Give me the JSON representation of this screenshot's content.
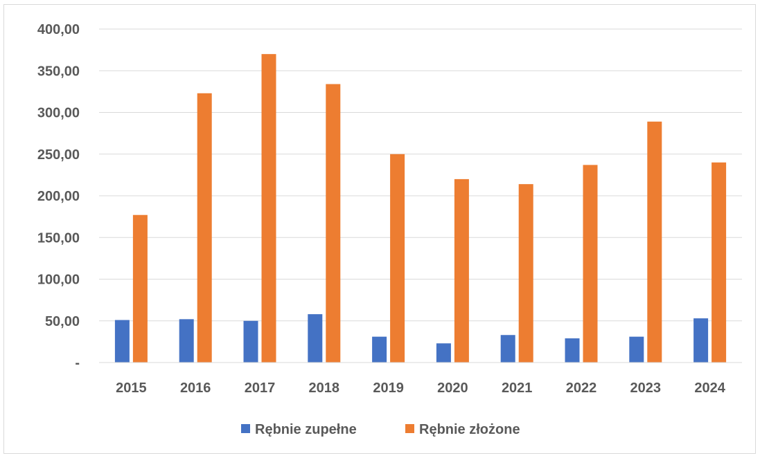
{
  "chart_data": {
    "type": "bar",
    "categories": [
      "2015",
      "2016",
      "2017",
      "2018",
      "2019",
      "2020",
      "2021",
      "2022",
      "2023",
      "2024"
    ],
    "series": [
      {
        "name": "Rębnie zupełne",
        "color": "#4472c4",
        "values": [
          51,
          52,
          50,
          58,
          31,
          23,
          33,
          29,
          31,
          53
        ]
      },
      {
        "name": "Rębnie złożone",
        "color": "#ed7d31",
        "values": [
          177,
          323,
          370,
          334,
          250,
          220,
          214,
          237,
          289,
          240
        ]
      }
    ],
    "ylim": [
      0,
      400
    ],
    "yticks": [
      "-",
      "50,00",
      "100,00",
      "150,00",
      "200,00",
      "250,00",
      "300,00",
      "350,00",
      "400,00"
    ],
    "grid": true,
    "legend_position": "bottom"
  }
}
